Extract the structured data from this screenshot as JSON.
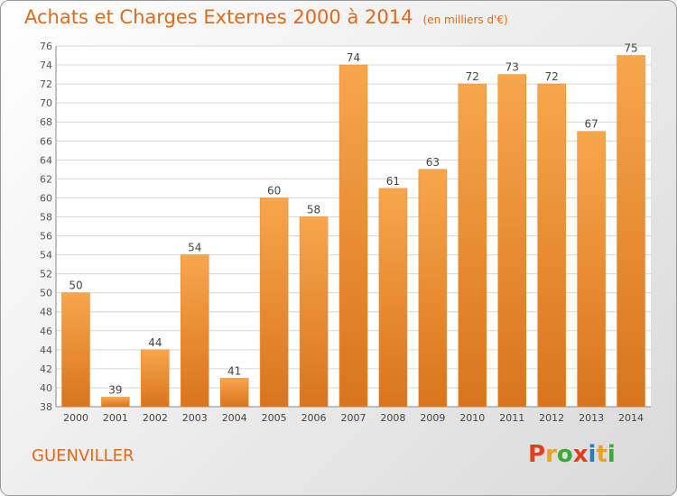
{
  "header": {
    "title": "Achats et Charges Externes 2000 à 2014",
    "unit": "(en milliers d'€)"
  },
  "footer": {
    "city": "GUENVILLER",
    "logo_letters": [
      "P",
      "r",
      "o",
      "x",
      "i",
      "t",
      "i"
    ],
    "logo_colors": [
      "#e0401a",
      "#f0a020",
      "#3aaa35",
      "#e0401a",
      "#1f7fc0",
      "#f0a020",
      "#3aaa35"
    ]
  },
  "colors": {
    "title": "#e06a1a",
    "bar_light": "#f7a64c",
    "bar_dark": "#d9741c",
    "grid": "#d6d6d6",
    "axis": "#888888"
  },
  "chart_data": {
    "type": "bar",
    "categories": [
      "2000",
      "2001",
      "2002",
      "2003",
      "2004",
      "2005",
      "2006",
      "2007",
      "2008",
      "2009",
      "2010",
      "2011",
      "2012",
      "2013",
      "2014"
    ],
    "values": [
      50,
      39,
      44,
      54,
      41,
      60,
      58,
      74,
      61,
      63,
      72,
      73,
      72,
      67,
      75
    ],
    "ylim": [
      38,
      76
    ],
    "yticks": [
      38,
      40,
      42,
      44,
      46,
      48,
      50,
      52,
      54,
      56,
      58,
      60,
      62,
      64,
      66,
      68,
      70,
      72,
      74,
      76
    ],
    "grid": true
  }
}
